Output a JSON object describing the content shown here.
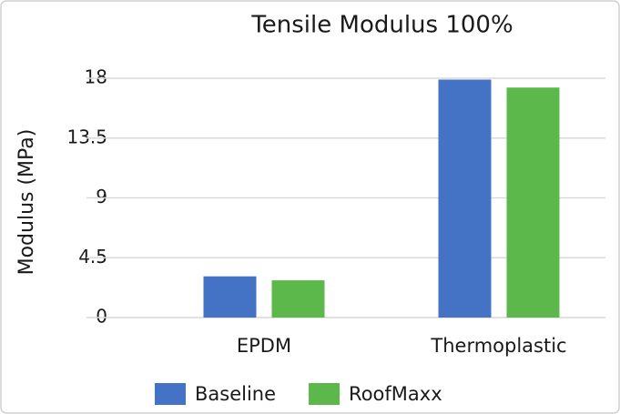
{
  "chart_data": {
    "type": "bar",
    "title": "Tensile Modulus 100%",
    "y_label": "Modulus (MPa)",
    "categories": [
      "EPDM",
      "Thermoplastic"
    ],
    "series": [
      {
        "name": "Baseline",
        "color": "#4472c4",
        "values": [
          3.1,
          17.9
        ]
      },
      {
        "name": "RoofMaxx",
        "color": "#5cb84a",
        "values": [
          2.8,
          17.3
        ]
      }
    ],
    "ylim": [
      0,
      18
    ],
    "yticks": [
      0,
      4.5,
      9,
      13.5,
      18
    ],
    "grid": true,
    "legend": "bottom"
  }
}
